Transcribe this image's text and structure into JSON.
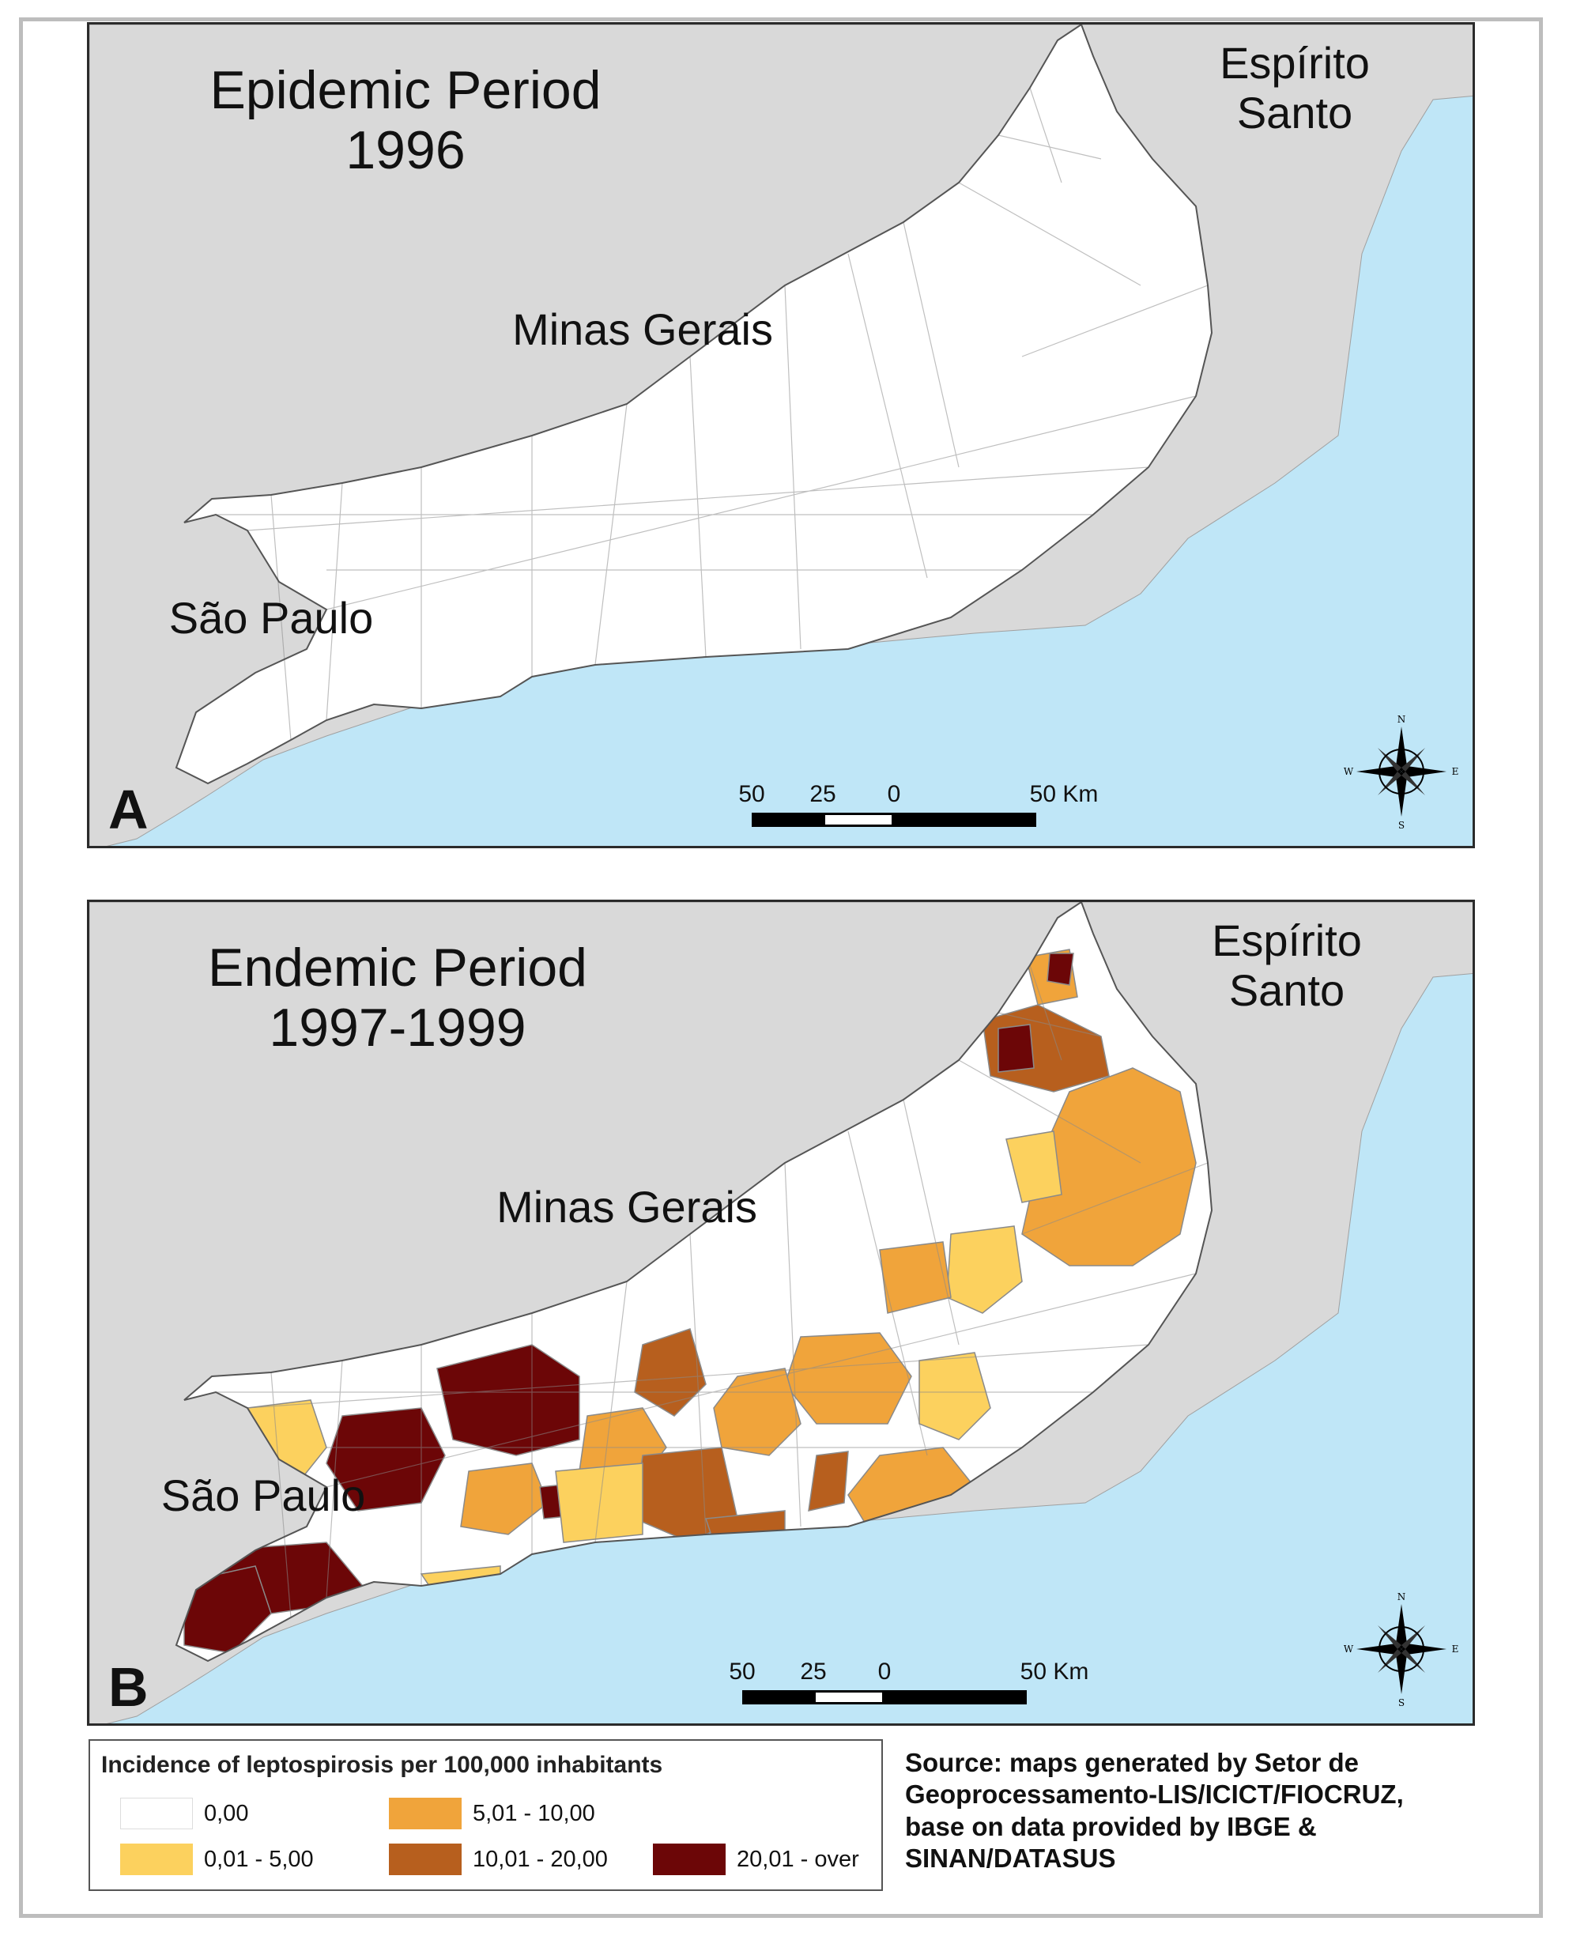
{
  "colors": {
    "sea": "#bfe6f7",
    "land_other": "#d9d9d9",
    "class_0": "#ffffff",
    "class_1": "#fcd15e",
    "class_2": "#f0a43b",
    "class_3": "#b75f1e",
    "class_4": "#6c0607",
    "boundary": "#8a8a8a"
  },
  "maps": [
    {
      "title_line1": "Epidemic Period",
      "title_line2": "1996",
      "panel_letter": "A",
      "labels": {
        "es_line1": "Espírito",
        "es_line2": "Santo",
        "mg": "Minas Gerais",
        "sp": "São Paulo"
      },
      "scale_ticks": [
        "50",
        "25",
        "0",
        "50 Km"
      ],
      "compass": {
        "n": "N",
        "s": "S",
        "e": "E",
        "w": "W"
      }
    },
    {
      "title_line1": "Endemic Period",
      "title_line2": "1997-1999",
      "panel_letter": "B",
      "labels": {
        "es_line1": "Espírito",
        "es_line2": "Santo",
        "mg": "Minas Gerais",
        "sp": "São Paulo"
      },
      "scale_ticks": [
        "50",
        "25",
        "0",
        "50 Km"
      ],
      "compass": {
        "n": "N",
        "s": "S",
        "e": "E",
        "w": "W"
      }
    }
  ],
  "legend": {
    "title": "Incidence of leptospirosis per 100,000 inhabitants",
    "classes": [
      {
        "label": "0,00",
        "color": "#ffffff"
      },
      {
        "label": "0,01 - 5,00",
        "color": "#fcd15e"
      },
      {
        "label": "5,01 - 10,00",
        "color": "#f0a43b"
      },
      {
        "label": "10,01 - 20,00",
        "color": "#b75f1e"
      },
      {
        "label": "20,01 - over",
        "color": "#6c0607"
      }
    ]
  },
  "source": {
    "line1": "Source: maps generated by Setor de",
    "line2": "Geoprocessamento-LIS/ICICT/FIOCRUZ,",
    "line3": "base on data provided by IBGE &",
    "line4": "SINAN/DATASUS"
  }
}
